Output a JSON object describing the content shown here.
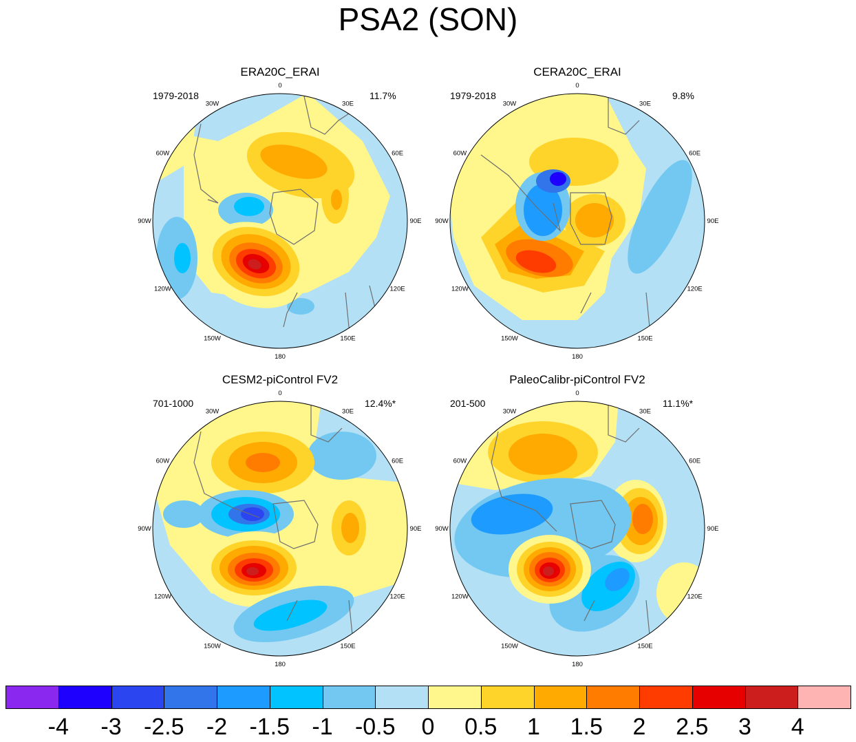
{
  "title": "PSA2 (SON)",
  "lon_labels": [
    "0",
    "30E",
    "60E",
    "90E",
    "120E",
    "150E",
    "180",
    "150W",
    "120W",
    "90W",
    "60W",
    "30W"
  ],
  "panels": [
    {
      "title": "ERA20C_ERAI",
      "years": "1979-2018",
      "pct": "11.7%"
    },
    {
      "title": "CERA20C_ERAI",
      "years": "1979-2018",
      "pct": "9.8%"
    },
    {
      "title": "CESM2-piControl FV2",
      "years": "701-1000",
      "pct": "12.4%*"
    },
    {
      "title": "PaleoCalibr-piControl FV2",
      "years": "201-500",
      "pct": "11.1%*"
    }
  ],
  "colorbar": {
    "colors": [
      "#8a28f0",
      "#1e00ff",
      "#2b46f0",
      "#3274ea",
      "#1e9bff",
      "#00c3ff",
      "#72c8f0",
      "#b3e0f5",
      "#fff68c",
      "#ffd42a",
      "#ffaa00",
      "#ff7c00",
      "#ff3c00",
      "#e60000",
      "#cd1e1e",
      "#ffb4b4"
    ],
    "labels": [
      "-4",
      "-3",
      "-2.5",
      "-2",
      "-1.5",
      "-1",
      "-0.5",
      "0",
      "0.5",
      "1",
      "1.5",
      "2",
      "2.5",
      "3",
      "4"
    ]
  },
  "colors": {
    "land_outline": "#6e6e6e",
    "frame": "#000000"
  }
}
